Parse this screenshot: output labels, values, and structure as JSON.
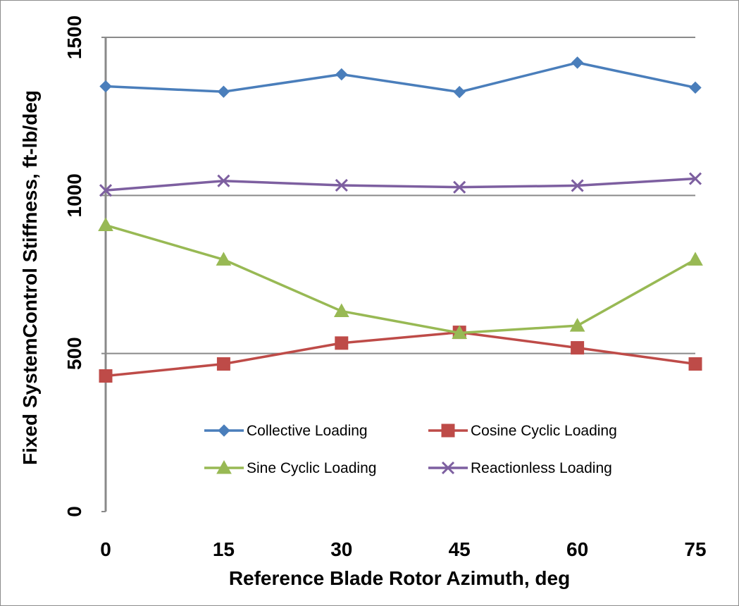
{
  "chart_data": {
    "type": "line",
    "title": "",
    "xlabel": "Reference Blade Rotor Azimuth, deg",
    "ylabel": "Fixed SystemControl Stiffness,  ft-lb/deg",
    "x": [
      0,
      15,
      30,
      45,
      60,
      75
    ],
    "x_tick_labels": [
      "0",
      "15",
      "30",
      "45",
      "60",
      "75"
    ],
    "y_ticks": [
      0,
      500,
      1000,
      1500
    ],
    "y_tick_labels": [
      "0",
      "500",
      "1000",
      "1500"
    ],
    "ylim": [
      0,
      1500
    ],
    "grid": "horizontal",
    "legend_position": "lower-center",
    "series": [
      {
        "name": "Collective Loading",
        "values": [
          1345,
          1328,
          1383,
          1327,
          1420,
          1341
        ],
        "color": "#4a7ebb",
        "marker": "diamond"
      },
      {
        "name": "Cosine Cyclic Loading",
        "values": [
          429,
          467,
          533,
          567,
          518,
          467
        ],
        "color": "#be4b48",
        "marker": "square"
      },
      {
        "name": "Sine Cyclic Loading",
        "values": [
          906,
          797,
          634,
          565,
          588,
          797
        ],
        "color": "#98b954",
        "marker": "triangle"
      },
      {
        "name": "Reactionless Loading",
        "values": [
          1016,
          1046,
          1032,
          1026,
          1031,
          1053
        ],
        "color": "#7d5fa0",
        "marker": "x"
      }
    ]
  }
}
